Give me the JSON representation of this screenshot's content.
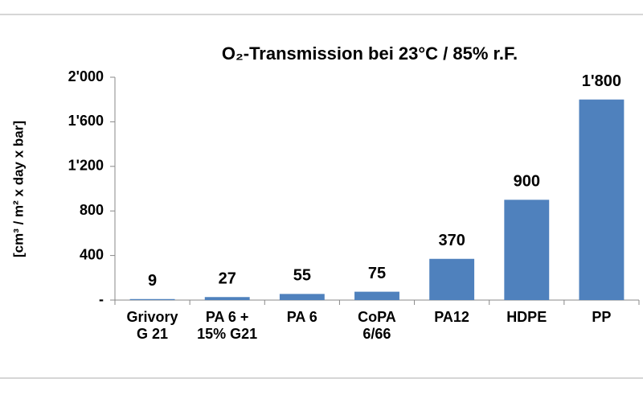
{
  "chart_data": {
    "type": "bar",
    "title": "O₂-Transmission bei 23°C / 85% r.F.",
    "y_label": "[cm³ / m² x day x bar]",
    "categories": [
      "Grivory\nG 21",
      "PA 6 +\n15% G21",
      "PA 6",
      "CoPA\n6/66",
      "PA12",
      "HDPE",
      "PP"
    ],
    "values": [
      9,
      27,
      55,
      75,
      370,
      900,
      1800
    ],
    "value_labels": [
      "9",
      "27",
      "55",
      "75",
      "370",
      "900",
      "1'800"
    ],
    "color": "#4f81bd",
    "ylim": [
      0,
      2000
    ],
    "yticks": [
      {
        "value": 0,
        "label": "-"
      },
      400,
      800,
      {
        "value": 1200,
        "label": "1'200"
      },
      {
        "value": 1600,
        "label": "1'600"
      },
      {
        "value": 2000,
        "label": "2'000"
      }
    ],
    "grid": false
  }
}
